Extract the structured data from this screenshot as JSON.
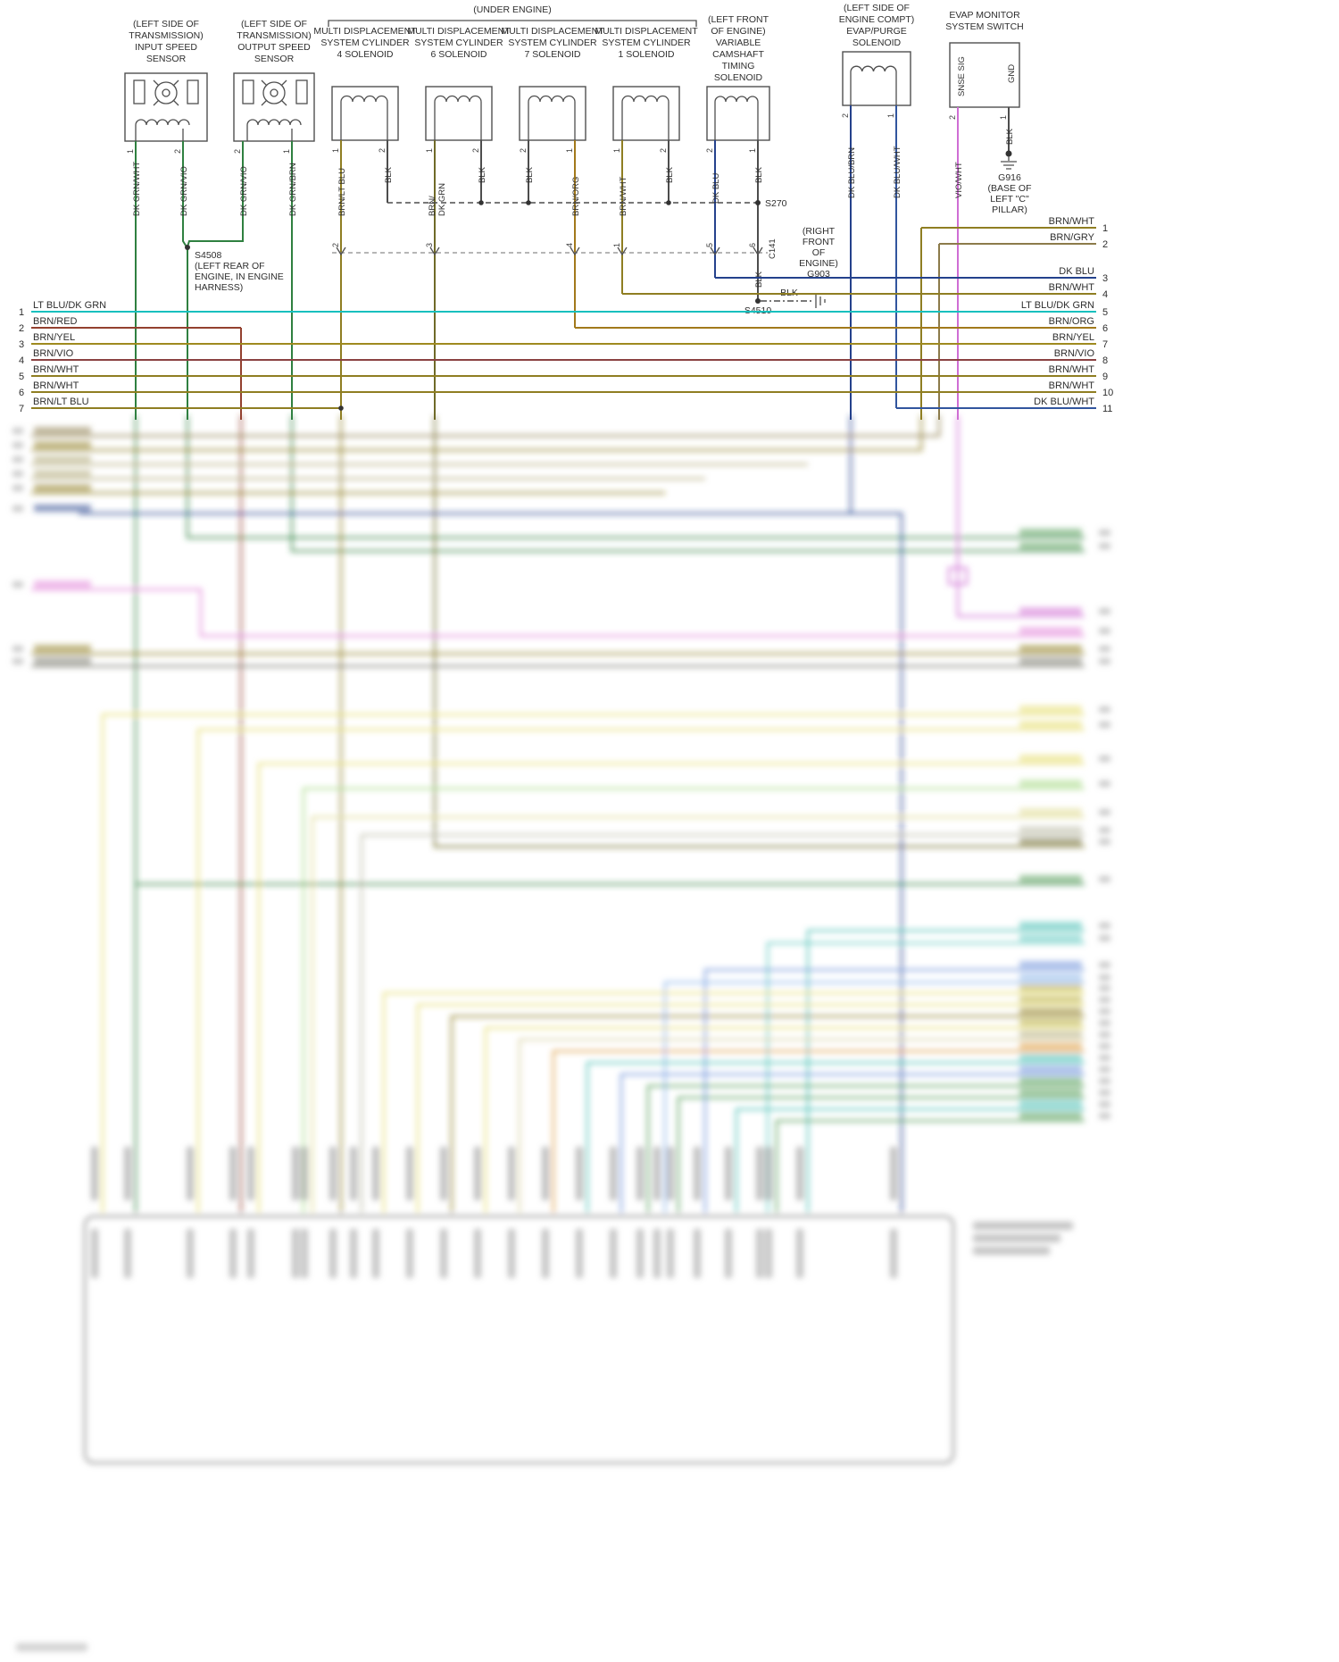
{
  "page": {
    "under_engine": "(UNDER ENGINE)"
  },
  "palette": {
    "dk_grn": "#2f8040",
    "lt_blu_dk_grn": "#17c0be",
    "brn_red": "#93402f",
    "brn_vio": "#8a4242",
    "brn_wht": "#8f7e22",
    "brn_yel": "#9f8a1f",
    "blk": "#4d4d4d",
    "dk_blu": "#24418c",
    "dk_blu_wht": "#31559e",
    "vio_wht": "#cf6ed4",
    "brn_org": "#a2791b",
    "brn_gry": "#8c7b4a",
    "pink": "#e283d8",
    "yellow": "#e5dc6a",
    "teal": "#46bdb2",
    "blue": "#6b8fd9"
  },
  "components": {
    "input_sensor": {
      "lines": [
        "(LEFT SIDE OF",
        "TRANSMISSION)",
        "INPUT SPEED",
        "SENSOR"
      ]
    },
    "output_sensor": {
      "lines": [
        "(LEFT SIDE OF",
        "TRANSMISSION)",
        "OUTPUT SPEED",
        "SENSOR"
      ]
    },
    "mds4": {
      "lines": [
        "MULTI DISPLACEMENT",
        "SYSTEM CYLINDER",
        "4 SOLENOID"
      ]
    },
    "mds6": {
      "lines": [
        "MULTI DISPLACEMENT",
        "SYSTEM CYLINDER",
        "6 SOLENOID"
      ]
    },
    "mds7": {
      "lines": [
        "MULTI DISPLACEMENT",
        "SYSTEM CYLINDER",
        "7 SOLENOID"
      ]
    },
    "mds1": {
      "lines": [
        "MULTI DISPLACEMENT",
        "SYSTEM CYLINDER",
        "1 SOLENOID"
      ]
    },
    "vct": {
      "lines": [
        "(LEFT FRONT",
        "OF ENGINE)",
        "VARIABLE",
        "CAMSHAFT",
        "TIMING",
        "SOLENOID"
      ]
    },
    "evap_purge": {
      "lines": [
        "(LEFT SIDE OF",
        "ENGINE COMPT)",
        "EVAP/PURGE",
        "SOLENOID"
      ]
    },
    "evap_monitor": {
      "lines": [
        "EVAP MONITOR",
        "SYSTEM SWITCH"
      ],
      "terminals": [
        "SNSE SIG",
        "GND"
      ]
    }
  },
  "wire_labels": [
    {
      "label": "DK GRN/WHT",
      "pin": "1"
    },
    {
      "label": "DK GRN/VIO",
      "pin": "2"
    },
    {
      "label": "DK GRN/VIO",
      "pin": "2"
    },
    {
      "label": "DK GRN/BRN",
      "pin": "1"
    },
    {
      "label": "BRN/LT BLU",
      "pin": "1"
    },
    {
      "label": "BLK",
      "pin": "2"
    },
    {
      "label": "BRN/",
      "label2": "DK GRN",
      "pin": "1"
    },
    {
      "label": "BLK",
      "pin": "2"
    },
    {
      "label": "BLK",
      "pin": "2"
    },
    {
      "label": "BRN/ORG",
      "pin": "1"
    },
    {
      "label": "BRN/WHT",
      "pin": "1"
    },
    {
      "label": "BLK",
      "pin": "2"
    },
    {
      "label": "DK BLU",
      "pin": "2"
    },
    {
      "label": "BLK",
      "pin": "1"
    },
    {
      "label": "DK BLU/BRN",
      "pin": "2"
    },
    {
      "label": "DK BLU/WHT",
      "pin": "1"
    },
    {
      "label": "VIO/WHT",
      "pin": "2"
    },
    {
      "label": "BLK",
      "pin": "1"
    }
  ],
  "c141": {
    "name": "C141",
    "pins": [
      "2",
      "3",
      "4",
      "1",
      "5",
      "6"
    ],
    "seg_label": "BLK"
  },
  "splices": {
    "s270": "S270",
    "s4508": {
      "lines": [
        "S4508",
        "(LEFT REAR OF",
        "ENGINE, IN ENGINE",
        "HARNESS)"
      ]
    },
    "s4510": {
      "name": "S4510",
      "wire": "BLK"
    },
    "g903": {
      "lines": [
        "(RIGHT",
        "FRONT",
        "OF",
        "ENGINE)",
        "G903"
      ]
    },
    "g916": {
      "lines": [
        "G916",
        "(BASE OF",
        "LEFT \"C\"",
        "PILLAR)"
      ]
    }
  },
  "left_rows": [
    {
      "n": "1",
      "label": "LT BLU/DK GRN"
    },
    {
      "n": "2",
      "label": "BRN/RED"
    },
    {
      "n": "3",
      "label": "BRN/YEL"
    },
    {
      "n": "4",
      "label": "BRN/VIO"
    },
    {
      "n": "5",
      "label": "BRN/WHT"
    },
    {
      "n": "6",
      "label": "BRN/WHT"
    },
    {
      "n": "7",
      "label": "BRN/LT BLU"
    }
  ],
  "right_rows": [
    {
      "n": "1",
      "label": "BRN/WHT"
    },
    {
      "n": "2",
      "label": "BRN/GRY"
    },
    {
      "n": "3",
      "label": "DK BLU"
    },
    {
      "n": "4",
      "label": "BRN/WHT"
    },
    {
      "n": "5",
      "label": "LT BLU/DK GRN"
    },
    {
      "n": "6",
      "label": "BRN/ORG"
    },
    {
      "n": "7",
      "label": "BRN/YEL"
    },
    {
      "n": "8",
      "label": "BRN/VIO"
    },
    {
      "n": "9",
      "label": "BRN/WHT"
    },
    {
      "n": "10",
      "label": "BRN/WHT"
    },
    {
      "n": "11",
      "label": "DK BLU/WHT"
    }
  ]
}
